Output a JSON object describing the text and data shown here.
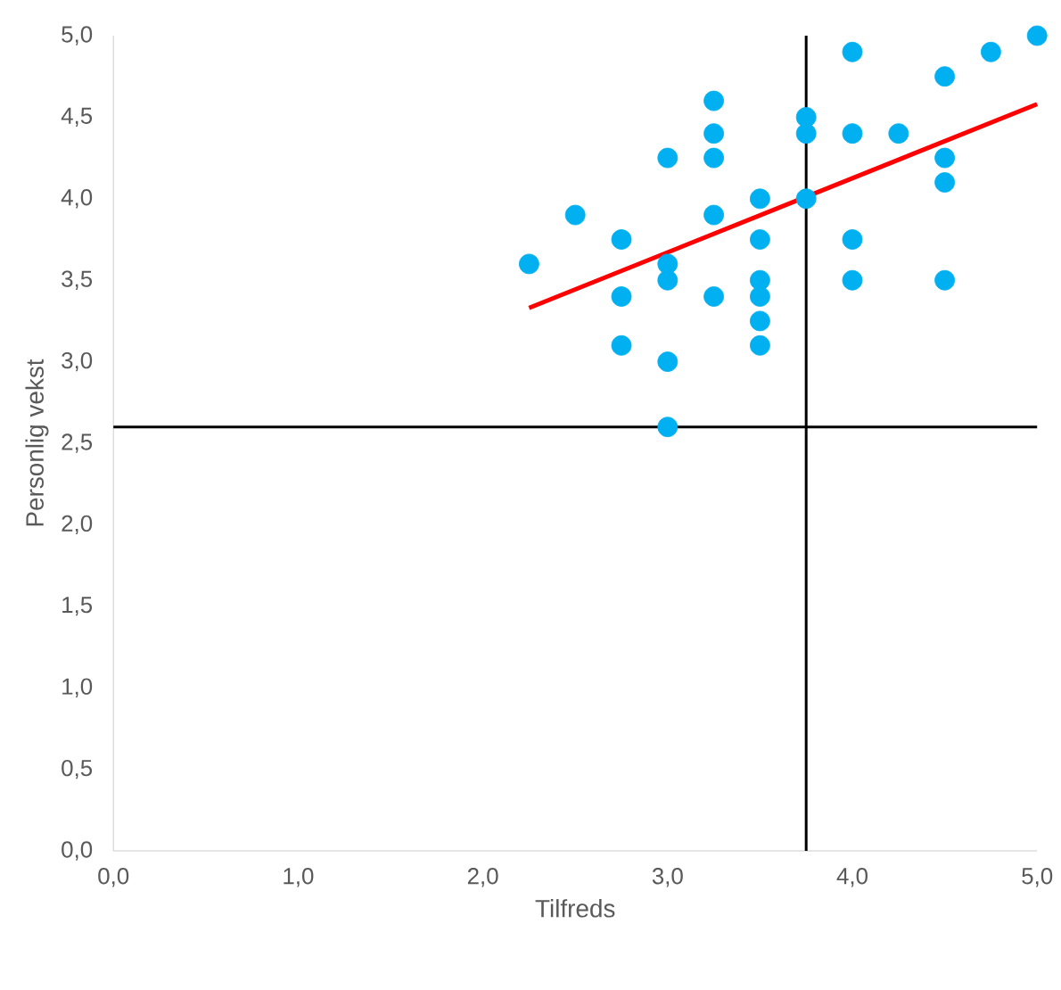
{
  "chart_data": {
    "type": "scatter",
    "xlabel": "Tilfreds",
    "ylabel": "Personlig vekst",
    "xlim": [
      0,
      5
    ],
    "ylim": [
      0,
      5
    ],
    "xticks": [
      {
        "value": 0,
        "label": "0,0"
      },
      {
        "value": 1,
        "label": "1,0"
      },
      {
        "value": 2,
        "label": "2,0"
      },
      {
        "value": 3,
        "label": "3,0"
      },
      {
        "value": 4,
        "label": "4,0"
      },
      {
        "value": 5,
        "label": "5,0"
      }
    ],
    "yticks": [
      {
        "value": 0,
        "label": "0,0"
      },
      {
        "value": 0.5,
        "label": "0,5"
      },
      {
        "value": 1,
        "label": "1,0"
      },
      {
        "value": 1.5,
        "label": "1,5"
      },
      {
        "value": 2,
        "label": "2,0"
      },
      {
        "value": 2.5,
        "label": "2,5"
      },
      {
        "value": 3,
        "label": "3,0"
      },
      {
        "value": 3.5,
        "label": "3,5"
      },
      {
        "value": 4,
        "label": "4,0"
      },
      {
        "value": 4.5,
        "label": "4,5"
      },
      {
        "value": 5,
        "label": "5,0"
      }
    ],
    "grid": false,
    "marker": "circle",
    "series": [
      {
        "color": "#00b0f0",
        "x": [
          2.25,
          2.5,
          2.75,
          2.75,
          2.75,
          3,
          3,
          3,
          3,
          3,
          3.25,
          3.25,
          3.25,
          3.25,
          3.25,
          3.5,
          3.5,
          3.5,
          3.5,
          3.5,
          3.5,
          3.75,
          3.75,
          3.75,
          4,
          4,
          4,
          4,
          4.25,
          4.5,
          4.5,
          4.5,
          4.5,
          4.75,
          5
        ],
        "values": [
          3.6,
          3.9,
          3.75,
          3.4,
          3.1,
          4.25,
          3.6,
          3.5,
          3,
          2.6,
          4.6,
          4.4,
          4.25,
          3.9,
          3.4,
          4,
          3.75,
          3.5,
          3.4,
          3.25,
          3.1,
          4.5,
          4.4,
          4,
          4.9,
          4.4,
          3.75,
          3.5,
          4.4,
          4.75,
          4.25,
          4.1,
          3.5,
          4.9,
          5
        ]
      },
      {
        "type": "line",
        "marker": "none",
        "color": "#ff0000",
        "x": [
          2.25,
          5
        ],
        "values": [
          3.33,
          4.58
        ]
      }
    ],
    "ref_lines": [
      {
        "axis": "x",
        "value": 3.75,
        "color": "#000000"
      },
      {
        "axis": "y",
        "value": 2.6,
        "color": "#000000"
      }
    ]
  }
}
